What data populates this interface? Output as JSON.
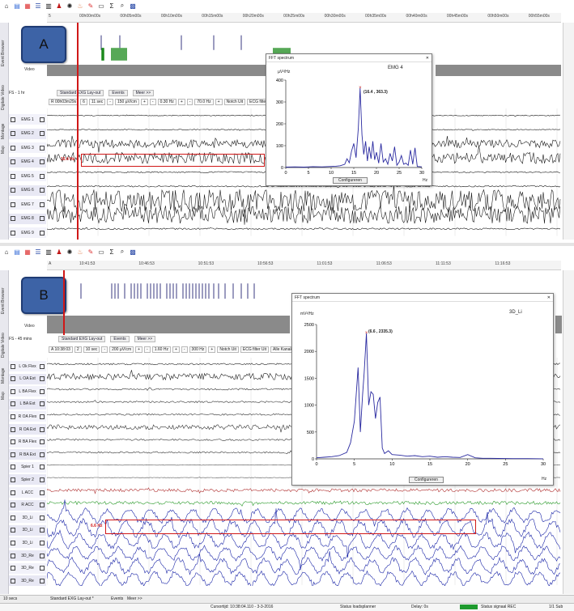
{
  "panels": [
    {
      "badge": "A",
      "ruler_ticks": [
        "00h00m00s",
        "00h05m00s",
        "00h10m00s",
        "00h15m00s",
        "00h20m00s",
        "00h25m00s",
        "00h30m00s",
        "00h35m00s",
        "00h40m00s",
        "00h45m00s",
        "00h50m00s",
        "00h55m00s"
      ],
      "ruler_prefix": "5",
      "side_tabs": [
        "Event Browser",
        "Digitale Video",
        "Montage",
        "Map"
      ],
      "video_label": "Video",
      "fs_label": "FS - 1 hr",
      "tabs": [
        "Standard EXG Lay-out",
        "Events",
        "Meer >>"
      ],
      "controls": [
        "R 00h03m29s",
        "6",
        "11 sec",
        "-",
        "150 µV/cm",
        "+",
        "-",
        "0.30 Hz",
        "+",
        "-",
        "70.0 Hz",
        "+",
        "Notch Uit",
        "ECG filter"
      ],
      "channels": [
        "EMG 1",
        "EMG 2",
        "EMG 3",
        "EMG 4",
        "EMG 5",
        "EMG 6",
        "EMG 7",
        "EMG 8",
        "EMG 9"
      ],
      "mark_label": "16.4 Hz",
      "fft": {
        "window_title": "FFT spectrum",
        "channel": "EMG 4",
        "y_unit": "µV²/Hz",
        "x_unit": "Hz",
        "peak_label": "(16.4 , 363.3)",
        "config_button": "Configureren"
      }
    },
    {
      "badge": "B",
      "ruler_prefix": "A",
      "ruler_ticks": [
        "10:41:53",
        "10:46:53",
        "10:51:53",
        "10:56:53",
        "11:01:53",
        "11:06:53",
        "11:11:53",
        "11:16:53"
      ],
      "side_tabs": [
        "Event Browser",
        "Digitale Video",
        "Montage",
        "Map"
      ],
      "video_label": "Video",
      "fs_label": "FS - 45 mins",
      "tabs": [
        "Standard EXG Lay-out",
        "Events",
        "Meer >>"
      ],
      "controls": [
        "A 10:38:03",
        "2",
        "10 sec",
        "-",
        "200 µV/cm",
        "+",
        "-",
        "1.60 Hz",
        "+",
        "-",
        "300 Hz",
        "+",
        "Notch Uit",
        "ECG filter Uit",
        "Alle Kanalen"
      ],
      "channels": [
        "L Ok Flex",
        "L OA Ext",
        "L BA Flex",
        "L BA Ext",
        "R OA Flex",
        "R OA Ext",
        "R BA Flex",
        "R BA Ext",
        "Spier 1",
        "Spier 2",
        "L ACC",
        "R ACC",
        "3D_Li",
        "3D_Li",
        "3D_Li",
        "3D_Re",
        "3D_Re",
        "3D_Re"
      ],
      "mark_label": "6.6 Hz",
      "fft": {
        "window_title": "FFT spectrum",
        "channel": "3D_Li",
        "y_unit": "mV²/Hz",
        "x_unit": "Hz",
        "peak_label": "(6.6 , 2335.3)",
        "config_button": "Configureren"
      },
      "statusbar": {
        "zoom": "10 secs",
        "layout_tab": "Standard EXG Lay-out *",
        "events_tab": "Events",
        "more_tab": "Meer >>",
        "cursor": "Cursortijd: 10:38:04.110 - 3-3-2016",
        "status_left": "Status loadsplanner",
        "delay": "Delay: 0s",
        "status_signal": "Status signaal REC",
        "page": "1/1 Sub"
      }
    }
  ],
  "chart_data": [
    {
      "type": "line",
      "title": "EMG 4",
      "xlabel": "Hz",
      "ylabel": "µV²/Hz",
      "xlim": [
        0,
        30
      ],
      "ylim": [
        0,
        400
      ],
      "xticks": [
        0,
        5,
        10,
        15,
        20,
        25,
        30
      ],
      "yticks": [
        0,
        100,
        200,
        300,
        400
      ],
      "x": [
        0,
        2,
        4,
        6,
        8,
        10,
        11,
        12,
        13,
        13.5,
        14,
        14.5,
        15,
        15.5,
        16,
        16.4,
        16.8,
        17.2,
        17.6,
        18,
        18.4,
        18.8,
        19.2,
        19.6,
        20,
        20.5,
        21,
        21.5,
        22,
        22.5,
        23,
        23.5,
        24,
        24.5,
        25,
        25.5,
        26,
        26.5,
        27,
        27.5,
        28,
        28.5,
        29,
        30
      ],
      "y": [
        2,
        3,
        2,
        4,
        3,
        5,
        6,
        8,
        15,
        40,
        22,
        75,
        110,
        45,
        180,
        363,
        150,
        60,
        120,
        30,
        95,
        40,
        120,
        35,
        70,
        20,
        110,
        25,
        40,
        15,
        65,
        30,
        95,
        10,
        25,
        55,
        15,
        20,
        10,
        80,
        15,
        90,
        5,
        3
      ],
      "peak": {
        "x": 16.4,
        "y": 363.3
      }
    },
    {
      "type": "line",
      "title": "3D_Li",
      "xlabel": "Hz",
      "ylabel": "mV²/Hz",
      "xlim": [
        0,
        30
      ],
      "ylim": [
        0,
        2500
      ],
      "xticks": [
        0,
        5,
        10,
        15,
        20,
        25,
        30
      ],
      "yticks": [
        0,
        500,
        1000,
        1500,
        2000,
        2500
      ],
      "x": [
        0,
        1,
        2,
        3,
        4,
        4.5,
        5,
        5.5,
        5.8,
        6.1,
        6.3,
        6.6,
        6.9,
        7.2,
        7.5,
        7.8,
        8.1,
        8.4,
        8.7,
        9,
        9.5,
        10,
        11,
        12,
        13,
        14,
        15,
        16,
        17,
        18,
        19,
        20,
        21,
        22,
        23,
        24,
        25,
        26,
        27,
        28,
        29,
        30
      ],
      "y": [
        20,
        30,
        40,
        60,
        120,
        300,
        700,
        1700,
        500,
        1200,
        1600,
        2335,
        1000,
        1250,
        1200,
        750,
        1050,
        1150,
        200,
        100,
        150,
        80,
        70,
        50,
        60,
        40,
        50,
        30,
        40,
        30,
        25,
        80,
        20,
        10,
        10,
        8,
        6,
        5,
        5,
        4,
        3,
        2
      ],
      "peak": {
        "x": 6.6,
        "y": 2335.3
      }
    }
  ]
}
